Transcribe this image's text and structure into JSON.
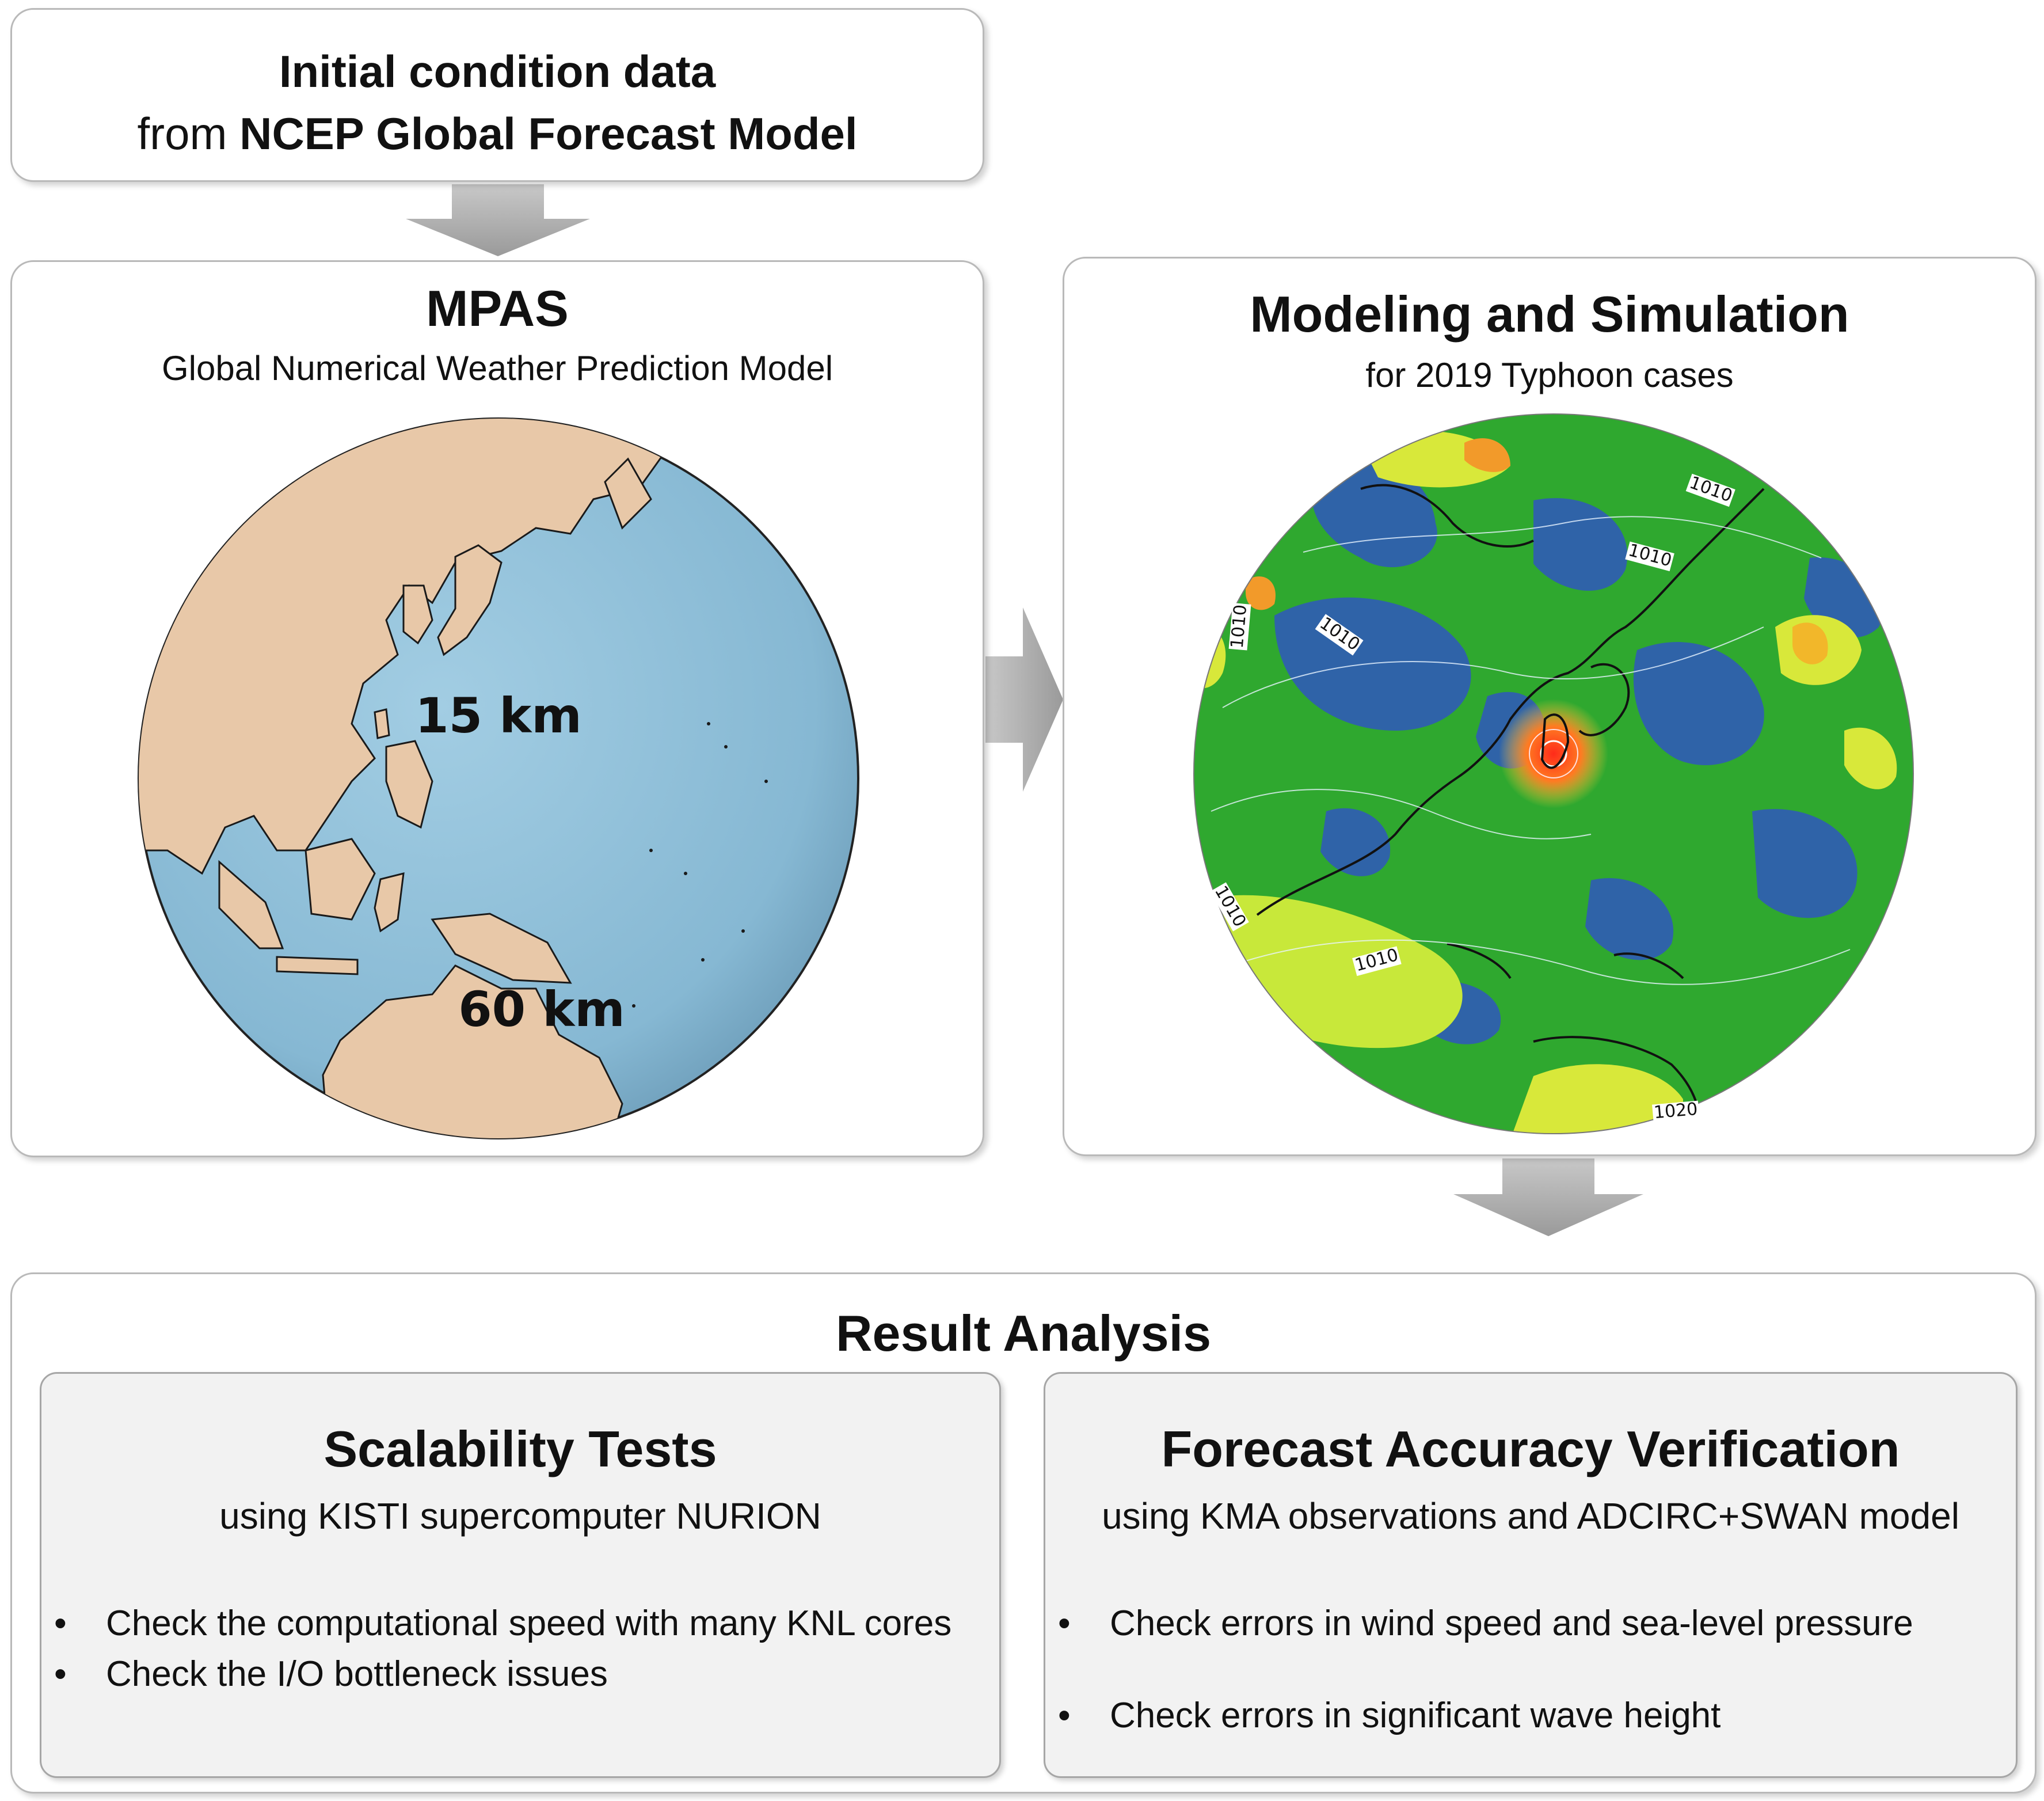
{
  "init": {
    "line1": "Initial condition data",
    "line2_prefix": "from ",
    "line2_bold": "NCEP Global Forecast Model"
  },
  "mpas": {
    "title": "MPAS",
    "subtitle": "Global Numerical Weather Prediction Model",
    "label_fine": "15 km",
    "label_coarse": "60 km"
  },
  "modeling": {
    "title": "Modeling and Simulation",
    "subtitle": "for 2019 Typhoon cases",
    "contour_labels": [
      "1010",
      "1010",
      "1010",
      "1010",
      "1010",
      "1010",
      "1020"
    ]
  },
  "result": {
    "title": "Result Analysis",
    "scalability": {
      "title": "Scalability Tests",
      "subtitle": "using KISTI supercomputer NURION",
      "bullets": [
        "Check the computational speed with many KNL cores",
        "Check the I/O bottleneck issues"
      ]
    },
    "forecast": {
      "title": "Forecast Accuracy Verification",
      "subtitle": "using KMA observations and ADCIRC+SWAN model",
      "bullets": [
        "Check errors in wind speed and sea-level pressure",
        "Check errors in significant wave height"
      ]
    }
  },
  "colors": {
    "ocean": "#8fbfd8",
    "land": "#e8c8a8",
    "arrow": "#a6a6a6",
    "field_green": "#2fa82f",
    "field_blue": "#2f63a8",
    "field_yellow": "#d8e83a",
    "typhoon_red": "#e53b2a"
  }
}
